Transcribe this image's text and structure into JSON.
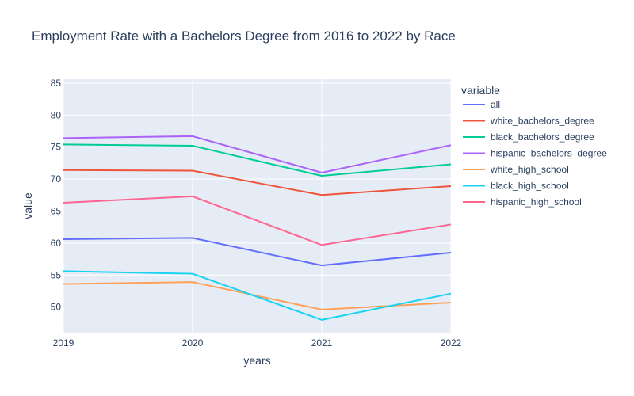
{
  "chart_data": {
    "type": "line",
    "title": "Employment Rate with a Bachelors Degree from 2016 to 2022 by Race",
    "xlabel": "years",
    "ylabel": "value",
    "x": [
      2019,
      2020,
      2021,
      2022
    ],
    "x_tick_labels": [
      "2019",
      "2020",
      "2021",
      "2022"
    ],
    "xlim": [
      2019,
      2022
    ],
    "y_ticks": [
      50,
      55,
      60,
      65,
      70,
      75,
      80,
      85
    ],
    "ylim": [
      46,
      85.6
    ],
    "grid": true,
    "legend": {
      "title": "variable",
      "placement": "right"
    },
    "series": [
      {
        "name": "all",
        "color": "#636efa",
        "values": [
          60.6,
          60.8,
          56.5,
          58.5
        ]
      },
      {
        "name": "white_bachelors_degree",
        "color": "#EF553B",
        "values": [
          71.4,
          71.3,
          67.5,
          68.9
        ]
      },
      {
        "name": "black_bachelors_degree",
        "color": "#00cc96",
        "values": [
          75.4,
          75.2,
          70.5,
          72.3
        ]
      },
      {
        "name": "hispanic_bachelors_degree",
        "color": "#ab63fa",
        "values": [
          76.4,
          76.7,
          71.0,
          75.3
        ]
      },
      {
        "name": "white_high_school",
        "color": "#FFA15A",
        "values": [
          53.6,
          53.9,
          49.6,
          50.7
        ]
      },
      {
        "name": "black_high_school",
        "color": "#19d3f3",
        "values": [
          55.6,
          55.2,
          48.0,
          52.1
        ]
      },
      {
        "name": "hispanic_high_school",
        "color": "#FF6692",
        "values": [
          66.3,
          67.3,
          59.7,
          62.9
        ]
      }
    ]
  }
}
